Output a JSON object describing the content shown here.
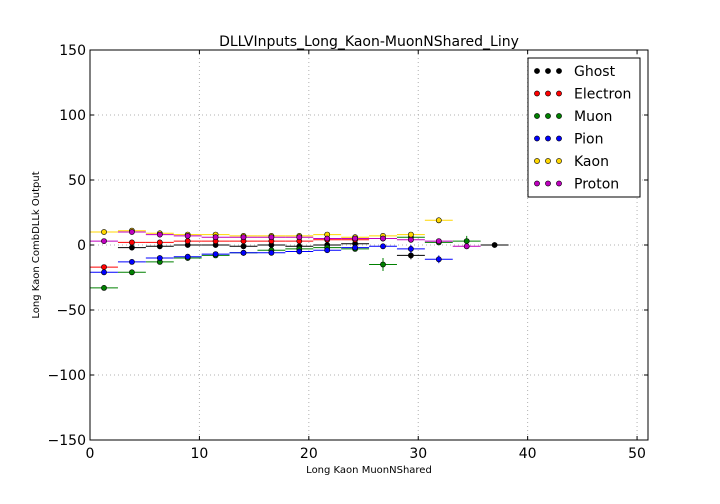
{
  "chart_data": {
    "type": "scatter",
    "title": "DLLVInputs_Long_Kaon-MuonNShared_Liny",
    "xlabel": "Long Kaon MuonNShared",
    "ylabel": "Long Kaon CombDLLk Output",
    "xlim": [
      0,
      51
    ],
    "ylim": [
      -150,
      150
    ],
    "xticks": [
      0,
      10,
      20,
      30,
      40,
      50
    ],
    "yticks": [
      -150,
      -100,
      -50,
      0,
      50,
      100,
      150
    ],
    "xtick_labels": [
      "0",
      "10",
      "20",
      "30",
      "40",
      "50"
    ],
    "ytick_labels": [
      "−150",
      "−100",
      "−50",
      "0",
      "50",
      "100",
      "150"
    ],
    "grid": true,
    "legend_position": "top-right",
    "x_bin_width": 2.55,
    "series": [
      {
        "name": "Ghost",
        "color": "#000000",
        "x": [
          3.83,
          6.38,
          8.93,
          11.48,
          14.03,
          16.58,
          19.13,
          21.68,
          24.23,
          29.33,
          36.98
        ],
        "y": [
          -2,
          -1,
          0,
          0,
          -1,
          0,
          -1,
          0,
          1,
          -8,
          0
        ],
        "yerr": [
          1,
          1,
          1,
          1,
          1,
          1,
          1,
          1,
          2,
          3,
          1
        ]
      },
      {
        "name": "Electron",
        "color": "#ff0000",
        "x": [
          1.28,
          3.83,
          6.38,
          8.93,
          11.48,
          14.03,
          16.58,
          19.13,
          21.68,
          24.23,
          26.78
        ],
        "y": [
          -17,
          2,
          2,
          3,
          3,
          3,
          3,
          3,
          4,
          4,
          5
        ],
        "yerr": [
          1,
          1,
          1,
          1,
          1,
          1,
          1,
          1,
          1,
          1,
          2
        ]
      },
      {
        "name": "Muon",
        "color": "#008000",
        "x": [
          1.28,
          3.83,
          6.38,
          8.93,
          11.48,
          14.03,
          16.58,
          19.13,
          21.68,
          24.23,
          26.78,
          29.33,
          31.88,
          34.43
        ],
        "y": [
          -33,
          -21,
          -13,
          -10,
          -8,
          -6,
          -4,
          -3,
          -2,
          -3,
          -15,
          6,
          2,
          3
        ],
        "yerr": [
          1,
          1,
          1,
          1,
          1,
          1,
          1,
          1,
          1,
          1,
          5,
          3,
          2,
          4
        ]
      },
      {
        "name": "Pion",
        "color": "#0000ff",
        "x": [
          1.28,
          3.83,
          6.38,
          8.93,
          11.48,
          14.03,
          16.58,
          19.13,
          21.68,
          24.23,
          26.78,
          29.33,
          31.88
        ],
        "y": [
          -21,
          -13,
          -10,
          -9,
          -7,
          -6,
          -6,
          -5,
          -4,
          -2,
          -1,
          -3,
          -11
        ],
        "yerr": [
          1,
          1,
          1,
          1,
          1,
          1,
          1,
          1,
          1,
          1,
          2,
          3,
          3
        ]
      },
      {
        "name": "Kaon",
        "color": "#ffd700",
        "x": [
          1.28,
          3.83,
          6.38,
          8.93,
          11.48,
          14.03,
          16.58,
          19.13,
          21.68,
          24.23,
          26.78,
          29.33,
          31.88
        ],
        "y": [
          10,
          11,
          9,
          8,
          8,
          7,
          7,
          7,
          8,
          6,
          7,
          8,
          19
        ],
        "yerr": [
          1,
          1,
          1,
          1,
          1,
          1,
          1,
          1,
          1,
          1,
          2,
          2,
          2
        ]
      },
      {
        "name": "Proton",
        "color": "#bf00bf",
        "x": [
          1.28,
          3.83,
          6.38,
          8.93,
          11.48,
          14.03,
          16.58,
          19.13,
          21.68,
          24.23,
          26.78,
          29.33,
          31.88,
          34.43
        ],
        "y": [
          3,
          10,
          8,
          7,
          6,
          6,
          6,
          6,
          5,
          5,
          5,
          4,
          3,
          -1
        ],
        "yerr": [
          1,
          1,
          1,
          1,
          1,
          1,
          1,
          1,
          1,
          1,
          1,
          2,
          2,
          2
        ]
      }
    ]
  }
}
